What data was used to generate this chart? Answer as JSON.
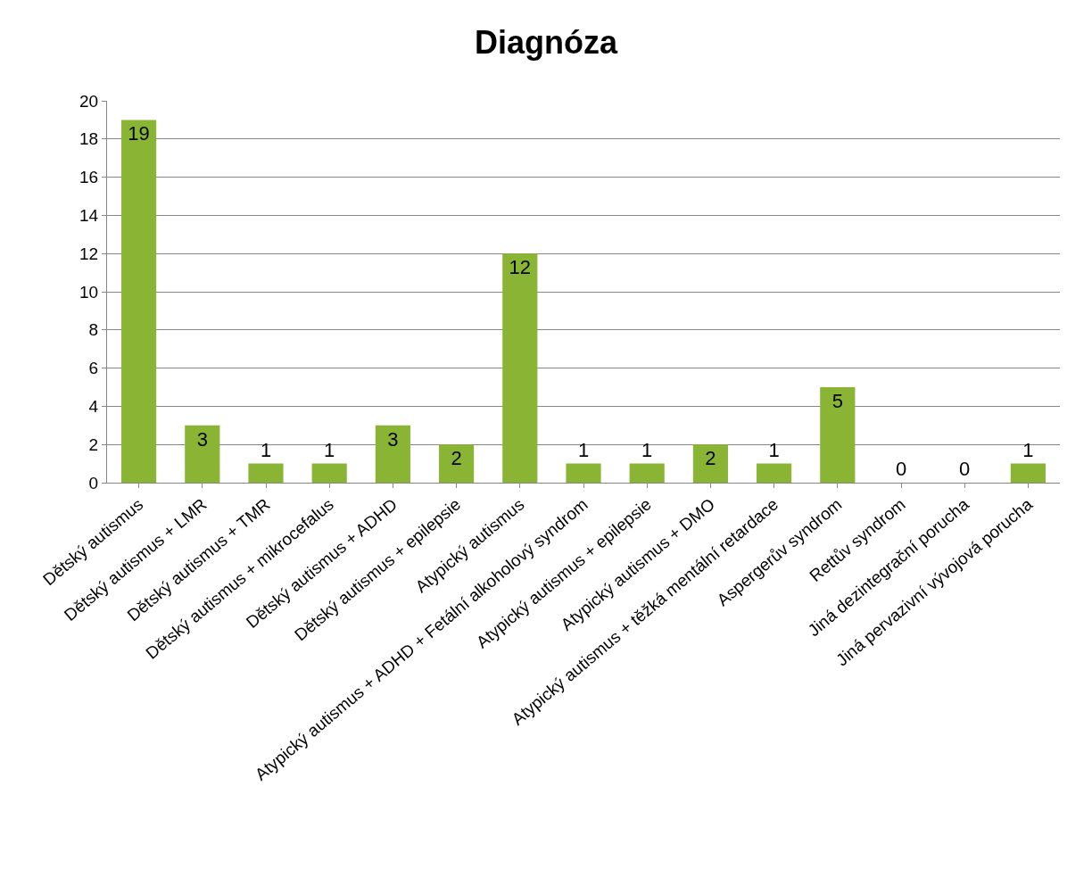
{
  "chart_data": {
    "type": "bar",
    "title": "Diagnóza",
    "categories": [
      "Dětský autismus",
      "Dětský autismus + LMR",
      "Dětský autismus + TMR",
      "Dětský autismus + mikrocefalus",
      "Dětský autismus + ADHD",
      "Dětský autismus + epilepsie",
      "Atypický autismus",
      "Atypický autismus + ADHD + Fetální alkoholový syndrom",
      "Atypický autismus + epilepsie",
      "Atypický autismus + DMO",
      "Atypický autismus + těžká mentální retardace",
      "Aspergerův syndrom",
      "Rettův syndrom",
      "Jiná dezintegrační porucha",
      "Jiná pervazivní vývojová porucha"
    ],
    "values": [
      19,
      3,
      1,
      1,
      3,
      2,
      12,
      1,
      1,
      2,
      1,
      5,
      0,
      0,
      1
    ],
    "color": "#8ab534",
    "ylim": [
      0,
      20
    ],
    "yticks": [
      0,
      2,
      4,
      6,
      8,
      10,
      12,
      14,
      16,
      18,
      20
    ],
    "grid": "y",
    "data_labels": true
  }
}
